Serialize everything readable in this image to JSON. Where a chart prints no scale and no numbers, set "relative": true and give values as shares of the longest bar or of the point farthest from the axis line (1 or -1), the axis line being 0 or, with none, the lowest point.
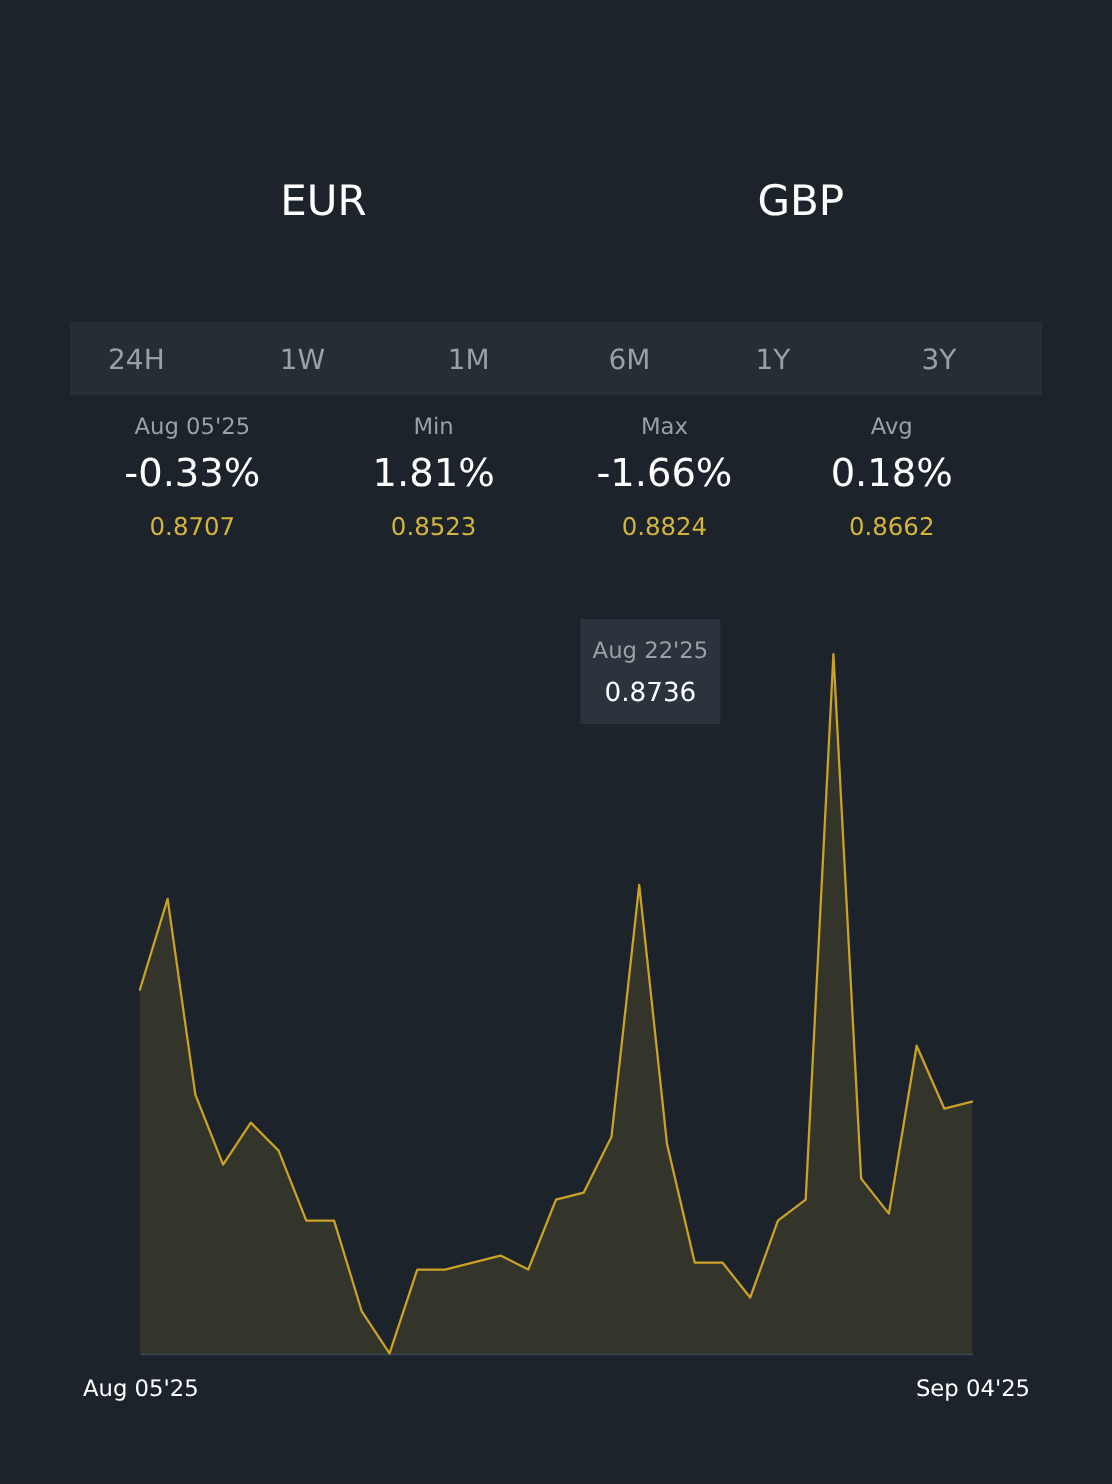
{
  "chart_data": {
    "type": "area",
    "relative": true,
    "color": "#c9a227",
    "categories": [
      "Aug 05'25",
      null,
      null,
      null,
      null,
      null,
      null,
      null,
      null,
      null,
      null,
      null,
      null,
      null,
      null,
      null,
      null,
      null,
      null,
      null,
      null,
      null,
      null,
      null,
      null,
      null,
      null,
      null,
      null,
      null,
      "Sep 04'25"
    ],
    "values": [
      0.52,
      0.65,
      0.37,
      0.27,
      0.33,
      0.29,
      0.19,
      0.19,
      0.06,
      0,
      0.12,
      0.12,
      0.13,
      0.14,
      0.12,
      0.22,
      0.23,
      0.31,
      0.67,
      0.3,
      0.13,
      0.13,
      0.08,
      0.19,
      0.22,
      1,
      0.25,
      0.2,
      0.44,
      0.35,
      0.36
    ],
    "annotations": [
      "EUR",
      "GBP",
      "24H",
      "1W",
      "1M",
      "6M",
      "1Y",
      "3Y",
      "Aug 05'25",
      "-0.33%",
      "0.8707",
      "Min",
      "1.81%",
      "0.8523",
      "Max",
      "-1.66%",
      "0.8824",
      "Avg",
      "0.18%",
      "0.8662",
      "Aug 22'25",
      "0.8736"
    ]
  }
}
